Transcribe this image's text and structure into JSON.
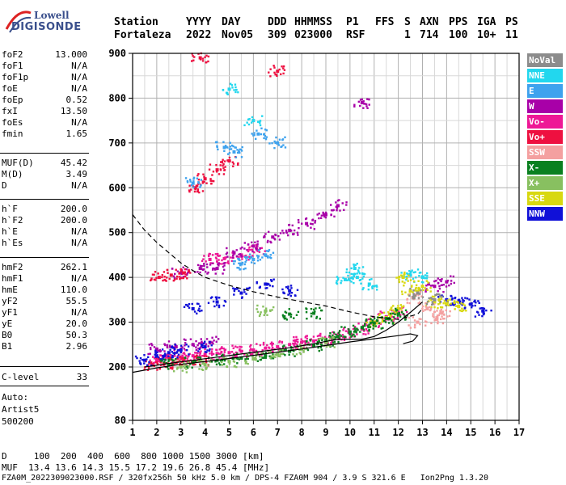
{
  "logo": {
    "line1": "Lowell",
    "line2": "DIGISONDE"
  },
  "header": {
    "labels": [
      "Station",
      "YYYY",
      "DAY",
      "DDD",
      "HHMMSS",
      "P1",
      "FFS",
      "S",
      "AXN",
      "PPS",
      "IGA",
      "PS"
    ],
    "values": [
      "Fortaleza",
      "2022",
      "Nov05",
      "309",
      "023000",
      "RSF",
      "",
      "1",
      "714",
      "100",
      "10+",
      "11"
    ]
  },
  "params_group1": [
    {
      "k": "foF2",
      "v": "13.000"
    },
    {
      "k": "foF1",
      "v": "N/A"
    },
    {
      "k": "foF1p",
      "v": "N/A"
    },
    {
      "k": "foE",
      "v": "N/A"
    },
    {
      "k": "foEp",
      "v": "0.52"
    },
    {
      "k": "fxI",
      "v": "13.50"
    },
    {
      "k": "foEs",
      "v": "N/A"
    },
    {
      "k": "fmin",
      "v": "1.65"
    }
  ],
  "params_group2": [
    {
      "k": "MUF(D)",
      "v": "45.42"
    },
    {
      "k": "M(D)",
      "v": "3.49"
    },
    {
      "k": "D",
      "v": "N/A"
    }
  ],
  "params_group3": [
    {
      "k": "h`F",
      "v": "200.0"
    },
    {
      "k": "h`F2",
      "v": "200.0"
    },
    {
      "k": "h`E",
      "v": "N/A"
    },
    {
      "k": "h`Es",
      "v": "N/A"
    }
  ],
  "params_group4": [
    {
      "k": "hmF2",
      "v": "262.1"
    },
    {
      "k": "hmF1",
      "v": "N/A"
    },
    {
      "k": "hmE",
      "v": "110.0"
    },
    {
      "k": "yF2",
      "v": "55.5"
    },
    {
      "k": "yF1",
      "v": "N/A"
    },
    {
      "k": "yE",
      "v": "20.0"
    },
    {
      "k": "B0",
      "v": "50.3"
    },
    {
      "k": "B1",
      "v": "2.96"
    }
  ],
  "clevel": {
    "k": "C-level",
    "v": "33"
  },
  "auto": {
    "line1": "Auto:",
    "line2": "Artist5",
    "line3": "500200"
  },
  "legend": [
    {
      "label": "NoVal",
      "color": "#8c8c8c"
    },
    {
      "label": "NNE",
      "color": "#22d7ee"
    },
    {
      "label": "E",
      "color": "#3ea2ee"
    },
    {
      "label": "W",
      "color": "#a800a8"
    },
    {
      "label": "Vo-",
      "color": "#ee1896"
    },
    {
      "label": "Vo+",
      "color": "#ee1040"
    },
    {
      "label": "SSW",
      "color": "#f4a0a0"
    },
    {
      "label": "X-",
      "color": "#0a8020"
    },
    {
      "label": "X+",
      "color": "#88c060"
    },
    {
      "label": "SSE",
      "color": "#d8d810"
    },
    {
      "label": "NNW",
      "color": "#1010d8"
    }
  ],
  "bottom": {
    "line1": "D     100  200  400  600  800 1000 1500 3000 [km]",
    "line2": "MUF  13.4 13.6 14.3 15.5 17.2 19.6 26.8 45.4 [MHz]",
    "line3": "FZA0M_2022309023000.RSF / 320fx256h 50 kHz 5.0 km / DPS-4 FZA0M 904 / 3.9 S 321.6 E   Ion2Png 1.3.20"
  },
  "chart_data": {
    "type": "scatter",
    "x_ticks": [
      "1",
      "2",
      "3",
      "4",
      "5",
      "6",
      "7",
      "8",
      "9",
      "10",
      "11",
      "12",
      "13",
      "14",
      "15",
      "16",
      "17"
    ],
    "y_ticks": [
      "80",
      "200",
      "300",
      "400",
      "500",
      "600",
      "700",
      "800",
      "900"
    ],
    "xlim": [
      1,
      17
    ],
    "ylim": [
      80,
      900
    ],
    "grid": true,
    "legend_placement": "right",
    "series": [
      {
        "legend_index": 4,
        "points": [
          [
            2.0,
            215
          ],
          [
            2.5,
            220
          ],
          [
            3.0,
            222
          ],
          [
            3.5,
            225
          ],
          [
            4.0,
            228
          ],
          [
            4.5,
            230
          ],
          [
            5.0,
            232
          ],
          [
            5.5,
            235
          ],
          [
            6.0,
            238
          ],
          [
            6.5,
            242
          ],
          [
            7.0,
            245
          ],
          [
            7.5,
            250
          ],
          [
            8.0,
            255
          ],
          [
            8.5,
            258
          ],
          [
            9.0,
            262
          ],
          [
            9.5,
            268
          ],
          [
            10.0,
            275
          ],
          [
            10.5,
            285
          ],
          [
            11.0,
            300
          ],
          [
            11.5,
            312
          ],
          [
            12.0,
            322
          ],
          [
            4.2,
            440
          ],
          [
            4.8,
            442
          ],
          [
            5.5,
            450
          ],
          [
            6.2,
            460
          ]
        ]
      },
      {
        "legend_index": 3,
        "points": [
          [
            2.0,
            240
          ],
          [
            2.8,
            245
          ],
          [
            3.5,
            250
          ],
          [
            4.2,
            255
          ],
          [
            4.5,
            420
          ],
          [
            5.2,
            455
          ],
          [
            6.0,
            470
          ],
          [
            6.8,
            490
          ],
          [
            7.5,
            505
          ],
          [
            8.2,
            520
          ],
          [
            9.0,
            540
          ],
          [
            9.5,
            560
          ],
          [
            10.5,
            790
          ],
          [
            3.0,
            410
          ],
          [
            3.8,
            420
          ],
          [
            13.5,
            380
          ],
          [
            14.0,
            390
          ]
        ]
      },
      {
        "legend_index": 5,
        "points": [
          [
            1.8,
            205
          ],
          [
            2.3,
            208
          ],
          [
            2.8,
            210
          ],
          [
            3.3,
            212
          ],
          [
            3.8,
            215
          ],
          [
            2.1,
            400
          ],
          [
            2.6,
            405
          ],
          [
            3.1,
            410
          ],
          [
            3.6,
            600
          ],
          [
            4.0,
            620
          ],
          [
            4.5,
            640
          ],
          [
            5.0,
            660
          ],
          [
            3.8,
            890
          ],
          [
            7.0,
            860
          ]
        ]
      },
      {
        "legend_index": 10,
        "points": [
          [
            1.5,
            215
          ],
          [
            2.0,
            225
          ],
          [
            2.5,
            232
          ],
          [
            3.0,
            238
          ],
          [
            4.0,
            245
          ],
          [
            3.5,
            330
          ],
          [
            4.5,
            345
          ],
          [
            5.5,
            365
          ],
          [
            6.5,
            385
          ],
          [
            7.5,
            370
          ],
          [
            14.0,
            350
          ],
          [
            14.5,
            345
          ],
          [
            15.0,
            340
          ],
          [
            15.5,
            325
          ]
        ]
      },
      {
        "legend_index": 1,
        "points": [
          [
            9.8,
            395
          ],
          [
            10.3,
            400
          ],
          [
            10.8,
            385
          ],
          [
            10.2,
            420
          ],
          [
            6.0,
            750
          ],
          [
            5.0,
            820
          ],
          [
            12.5,
            405
          ],
          [
            13.0,
            400
          ]
        ]
      },
      {
        "legend_index": 2,
        "points": [
          [
            5.5,
            430
          ],
          [
            6.0,
            440
          ],
          [
            6.5,
            450
          ],
          [
            7.0,
            700
          ],
          [
            6.2,
            720
          ],
          [
            4.8,
            690
          ],
          [
            5.2,
            680
          ],
          [
            3.5,
            610
          ]
        ]
      },
      {
        "legend_index": 9,
        "points": [
          [
            11.0,
            300
          ],
          [
            11.5,
            310
          ],
          [
            12.0,
            330
          ],
          [
            12.5,
            370
          ],
          [
            13.0,
            380
          ],
          [
            13.5,
            345
          ],
          [
            14.0,
            340
          ],
          [
            14.5,
            335
          ],
          [
            12.2,
            400
          ]
        ]
      },
      {
        "legend_index": 7,
        "points": [
          [
            2.5,
            205
          ],
          [
            3.5,
            210
          ],
          [
            4.5,
            215
          ],
          [
            5.5,
            220
          ],
          [
            6.5,
            225
          ],
          [
            7.5,
            235
          ],
          [
            8.5,
            248
          ],
          [
            9.0,
            258
          ],
          [
            9.5,
            268
          ],
          [
            10.0,
            278
          ],
          [
            10.5,
            288
          ],
          [
            11.0,
            298
          ],
          [
            11.5,
            308
          ],
          [
            12.0,
            318
          ],
          [
            7.5,
            318
          ],
          [
            8.5,
            320
          ]
        ]
      },
      {
        "legend_index": 8,
        "points": [
          [
            3.0,
            200
          ],
          [
            4.0,
            205
          ],
          [
            5.0,
            212
          ],
          [
            6.0,
            218
          ],
          [
            7.0,
            228
          ],
          [
            8.0,
            240
          ],
          [
            9.0,
            255
          ],
          [
            6.5,
            325
          ]
        ]
      },
      {
        "legend_index": 6,
        "points": [
          [
            12.6,
            355
          ],
          [
            13.2,
            330
          ],
          [
            13.8,
            320
          ],
          [
            12.8,
            300
          ],
          [
            13.6,
            310
          ]
        ]
      },
      {
        "legend_index": 0,
        "points": [
          [
            12.8,
            365
          ],
          [
            13.5,
            350
          ]
        ]
      }
    ],
    "curves": [
      {
        "style": "dashed",
        "points": [
          [
            1,
            540
          ],
          [
            1.5,
            505
          ],
          [
            2,
            478
          ],
          [
            2.5,
            455
          ],
          [
            3,
            432
          ],
          [
            3.5,
            415
          ],
          [
            4,
            400
          ],
          [
            5,
            382
          ],
          [
            6,
            368
          ],
          [
            7,
            356
          ],
          [
            8,
            346
          ],
          [
            9,
            336
          ],
          [
            10,
            323
          ],
          [
            11,
            312
          ],
          [
            12,
            306
          ],
          [
            12.8,
            318
          ],
          [
            13,
            330
          ]
        ]
      },
      {
        "style": "solid",
        "points": [
          [
            1,
            188
          ],
          [
            2,
            198
          ],
          [
            3,
            206
          ],
          [
            4,
            212
          ],
          [
            5,
            219
          ],
          [
            6,
            226
          ],
          [
            7,
            233
          ],
          [
            8,
            240
          ],
          [
            9,
            248
          ],
          [
            10,
            256
          ],
          [
            11,
            263
          ],
          [
            12,
            270
          ],
          [
            12.5,
            274
          ],
          [
            12.8,
            270
          ],
          [
            12.6,
            258
          ],
          [
            12.2,
            252
          ]
        ]
      },
      {
        "style": "solid",
        "points": [
          [
            1.5,
            200
          ],
          [
            2.5,
            208
          ],
          [
            3.5,
            215
          ],
          [
            4.5,
            222
          ],
          [
            5.5,
            229
          ],
          [
            6.5,
            236
          ],
          [
            7.5,
            243
          ],
          [
            8.5,
            252
          ],
          [
            9.5,
            262
          ],
          [
            10.5,
            262
          ],
          [
            11.0,
            268
          ],
          [
            11.5,
            282
          ],
          [
            12.0,
            300
          ],
          [
            12.5,
            322
          ],
          [
            13.0,
            345
          ]
        ]
      }
    ]
  }
}
